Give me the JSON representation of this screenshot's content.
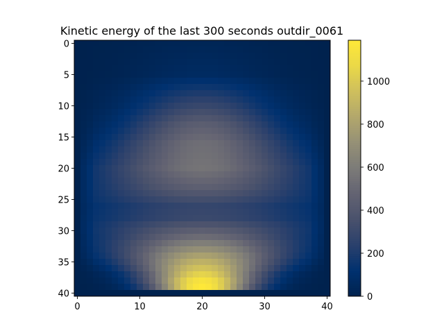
{
  "chart_data": {
    "type": "heatmap",
    "title": "Kinetic energy of the last 300 seconds outdir_0061",
    "xlabel": "",
    "ylabel": "",
    "grid_size": [
      41,
      41
    ],
    "x_range": [
      0,
      40
    ],
    "y_range": [
      0,
      40
    ],
    "y_axis_inverted": true,
    "x_ticks": [
      0,
      10,
      20,
      30,
      40
    ],
    "y_ticks": [
      0,
      5,
      10,
      15,
      20,
      25,
      30,
      35,
      40
    ],
    "colormap": "cividis",
    "colorbar": {
      "min": 0,
      "max": 1190,
      "ticks": [
        0,
        200,
        400,
        600,
        800,
        1000
      ]
    },
    "grid": false,
    "row_profiles": [
      {
        "row": 0,
        "peak": 30,
        "width": 8
      },
      {
        "row": 5,
        "peak": 70,
        "width": 8
      },
      {
        "row": 10,
        "peak": 290,
        "width": 8
      },
      {
        "row": 13,
        "peak": 440,
        "width": 8.5
      },
      {
        "row": 16,
        "peak": 530,
        "width": 9.5
      },
      {
        "row": 20,
        "peak": 560,
        "width": 11
      },
      {
        "row": 23,
        "peak": 450,
        "width": 12
      },
      {
        "row": 26,
        "peak": 280,
        "width": 14
      },
      {
        "row": 28,
        "peak": 300,
        "width": 14
      },
      {
        "row": 31,
        "peak": 520,
        "width": 11
      },
      {
        "row": 34,
        "peak": 800,
        "width": 9
      },
      {
        "row": 37,
        "peak": 1050,
        "width": 6.5
      },
      {
        "row": 38,
        "peak": 1150,
        "width": 6
      },
      {
        "row": 39,
        "peak": 1190,
        "width": 5.5
      },
      {
        "row": 40,
        "peak": 0,
        "width": 5
      }
    ],
    "row_center": 20,
    "edge_columns_value": 0
  }
}
